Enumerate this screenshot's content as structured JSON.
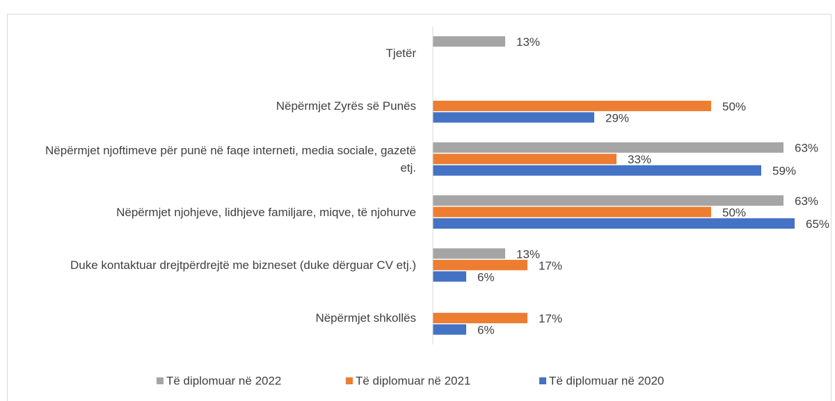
{
  "chart_data": {
    "type": "barh",
    "categories": [
      "Tjetër",
      "Nëpërmjet Zyrës së Punës",
      "Nëpërmjet njoftimeve për punë në faqe interneti, media sociale, gazetë etj.",
      "Nëpërmjet njohjeve, lidhjeve familjare, miqve, të njohurve",
      "Duke kontaktuar drejtpërdrejtë me bizneset (duke dërguar CV etj.)",
      "Nëpërmjet shkollës"
    ],
    "series": [
      {
        "name": "Të diplomuar në 2022",
        "color": "#a5a5a5",
        "values": [
          13,
          null,
          63,
          63,
          13,
          null
        ],
        "value_labels": [
          "13%",
          null,
          "63%",
          "63%",
          "13%",
          null
        ]
      },
      {
        "name": "Të diplomuar në 2021",
        "color": "#ed7d31",
        "values": [
          null,
          50,
          33,
          50,
          17,
          17
        ],
        "value_labels": [
          null,
          "50%",
          "33%",
          "50%",
          "17%",
          "17%"
        ]
      },
      {
        "name": "Të diplomuar në 2020",
        "color": "#4472c4",
        "values": [
          null,
          29,
          59,
          65,
          6,
          6
        ],
        "value_labels": [
          null,
          "29%",
          "59%",
          "65%",
          "6%",
          "6%"
        ]
      }
    ],
    "xlim": [
      0,
      70
    ],
    "legend": "bottom"
  }
}
